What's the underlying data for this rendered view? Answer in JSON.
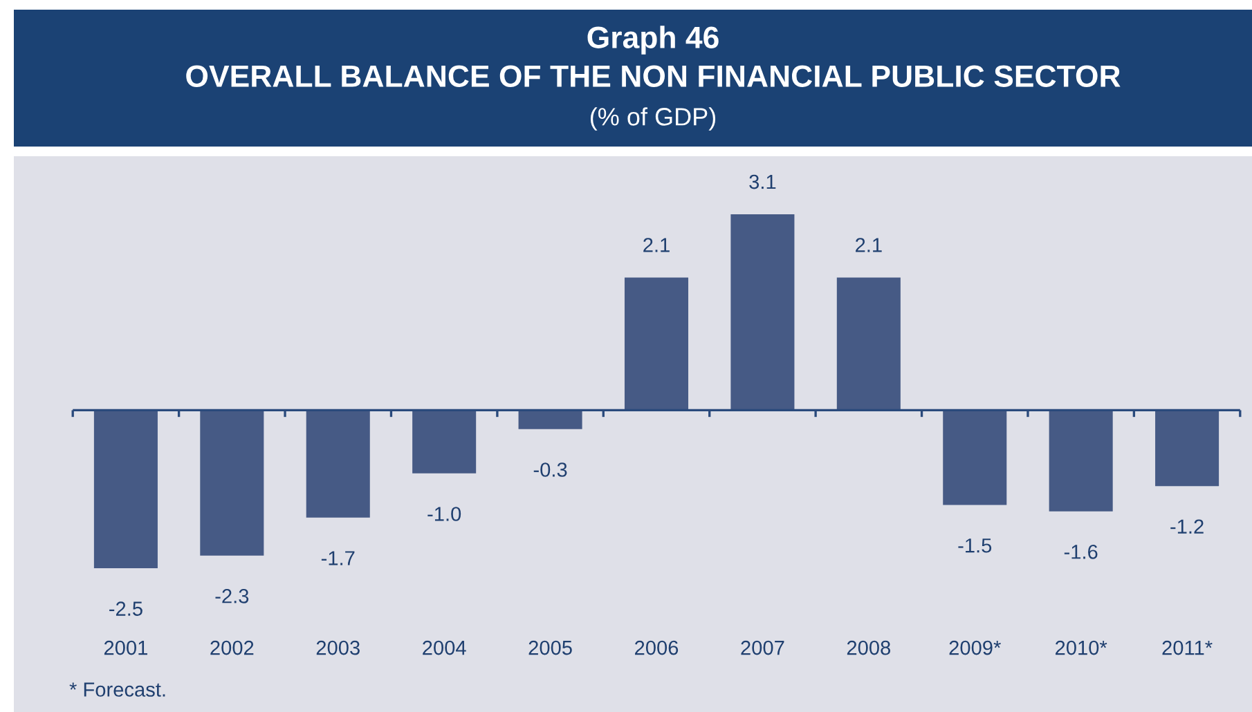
{
  "chart_data": {
    "type": "bar",
    "title": "Graph 46",
    "subtitle": "OVERALL BALANCE OF THE NON FINANCIAL PUBLIC SECTOR",
    "ylabel": "(% of GDP)",
    "categories": [
      "2001",
      "2002",
      "2003",
      "2004",
      "2005",
      "2006",
      "2007",
      "2008",
      "2009*",
      "2010*",
      "2011*"
    ],
    "values": [
      -2.5,
      -2.3,
      -1.7,
      -1.0,
      -0.3,
      2.1,
      3.1,
      2.1,
      -1.5,
      -1.6,
      -1.2
    ],
    "value_labels": [
      "-2.5",
      "-2.3",
      "-1.7",
      "-1.0",
      "-0.3",
      "2.1",
      "3.1",
      "2.1",
      "-1.5",
      "-1.6",
      "-1.2"
    ],
    "color": "#465a85",
    "grid": false,
    "tick_labels": "x",
    "ref_lines": [
      {
        "axis": "y",
        "value": 0,
        "color": "#2a4a7c"
      }
    ],
    "annotations": [
      "* Forecast."
    ]
  }
}
